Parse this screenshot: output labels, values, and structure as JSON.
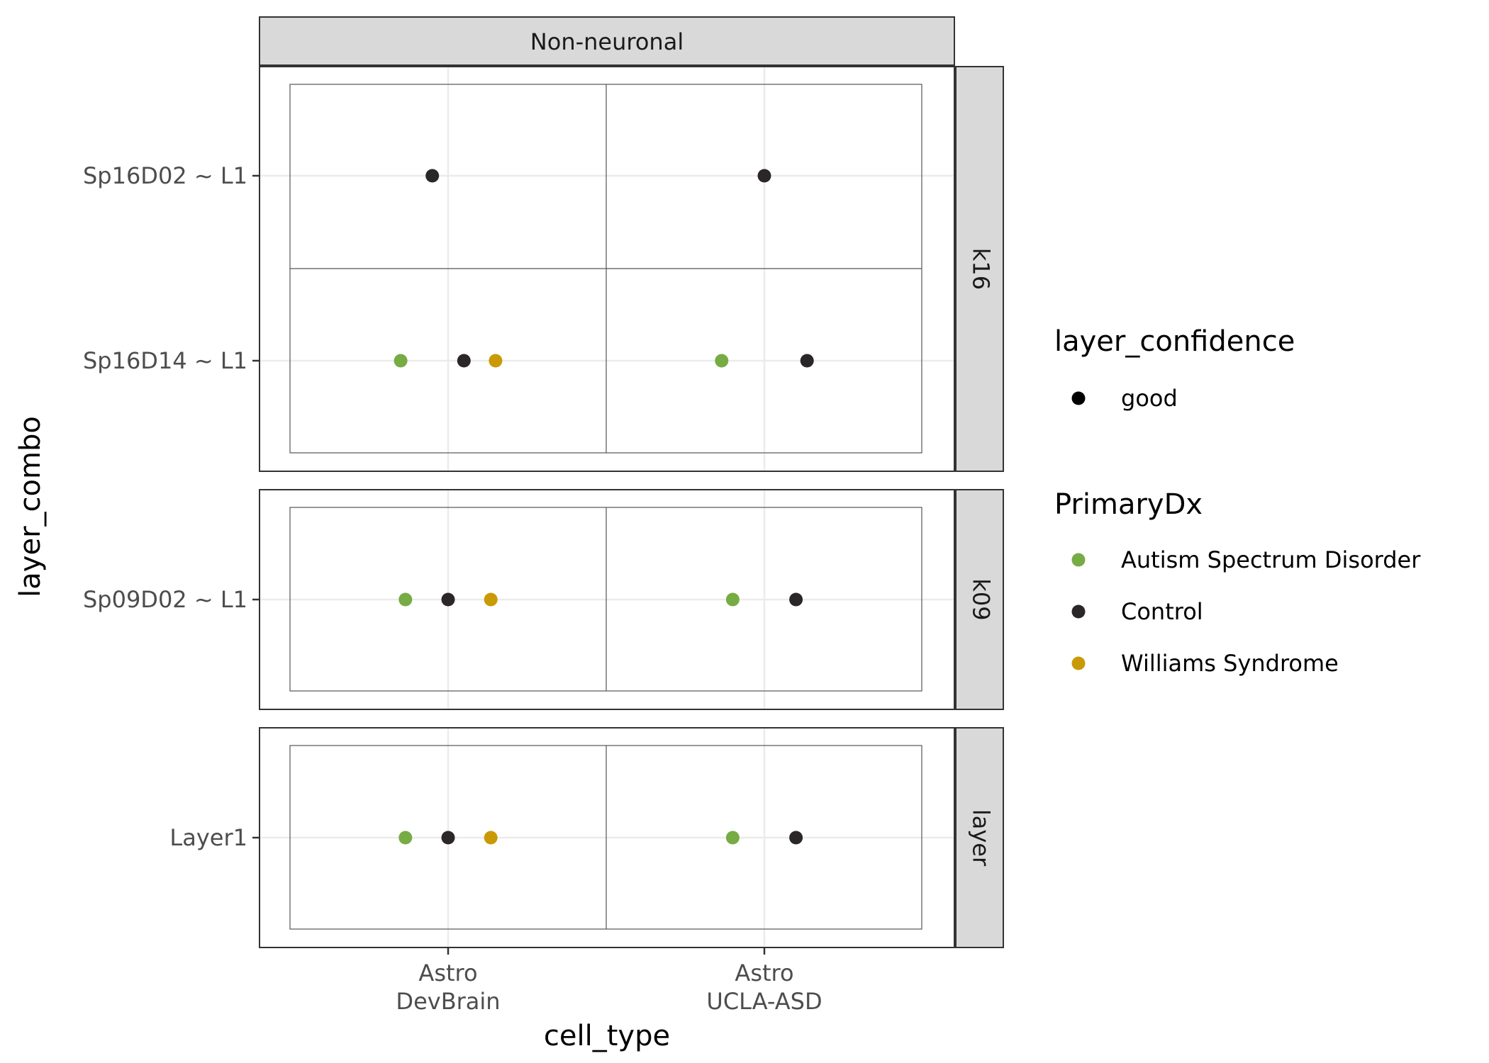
{
  "chart_data": {
    "type": "scatter",
    "x_label": "cell_type",
    "y_label": "layer_combo",
    "column_facet": "Non-neuronal",
    "x_categories": [
      "Astro\nDevBrain",
      "Astro\nUCLA-ASD"
    ],
    "row_facets": [
      {
        "label": "k16",
        "y_categories": [
          "Sp16D02 ~ L1",
          "Sp16D14 ~ L1"
        ],
        "points": [
          {
            "x": "Astro\nDevBrain",
            "y": "Sp16D02 ~ L1",
            "dx": "Control",
            "offset": -0.1
          },
          {
            "x": "Astro\nUCLA-ASD",
            "y": "Sp16D02 ~ L1",
            "dx": "Control",
            "offset": 0.0
          },
          {
            "x": "Astro\nDevBrain",
            "y": "Sp16D14 ~ L1",
            "dx": "Autism Spectrum Disorder",
            "offset": -0.3
          },
          {
            "x": "Astro\nDevBrain",
            "y": "Sp16D14 ~ L1",
            "dx": "Control",
            "offset": 0.1
          },
          {
            "x": "Astro\nDevBrain",
            "y": "Sp16D14 ~ L1",
            "dx": "Williams Syndrome",
            "offset": 0.3
          },
          {
            "x": "Astro\nUCLA-ASD",
            "y": "Sp16D14 ~ L1",
            "dx": "Autism Spectrum Disorder",
            "offset": -0.27
          },
          {
            "x": "Astro\nUCLA-ASD",
            "y": "Sp16D14 ~ L1",
            "dx": "Control",
            "offset": 0.27
          }
        ]
      },
      {
        "label": "k09",
        "y_categories": [
          "Sp09D02 ~ L1"
        ],
        "points": [
          {
            "x": "Astro\nDevBrain",
            "y": "Sp09D02 ~ L1",
            "dx": "Autism Spectrum Disorder",
            "offset": -0.27
          },
          {
            "x": "Astro\nDevBrain",
            "y": "Sp09D02 ~ L1",
            "dx": "Control",
            "offset": 0.0
          },
          {
            "x": "Astro\nDevBrain",
            "y": "Sp09D02 ~ L1",
            "dx": "Williams Syndrome",
            "offset": 0.27
          },
          {
            "x": "Astro\nUCLA-ASD",
            "y": "Sp09D02 ~ L1",
            "dx": "Autism Spectrum Disorder",
            "offset": -0.2
          },
          {
            "x": "Astro\nUCLA-ASD",
            "y": "Sp09D02 ~ L1",
            "dx": "Control",
            "offset": 0.2
          }
        ]
      },
      {
        "label": "layer",
        "y_categories": [
          "Layer1"
        ],
        "points": [
          {
            "x": "Astro\nDevBrain",
            "y": "Layer1",
            "dx": "Autism Spectrum Disorder",
            "offset": -0.27
          },
          {
            "x": "Astro\nDevBrain",
            "y": "Layer1",
            "dx": "Control",
            "offset": 0.0
          },
          {
            "x": "Astro\nDevBrain",
            "y": "Layer1",
            "dx": "Williams Syndrome",
            "offset": 0.27
          },
          {
            "x": "Astro\nUCLA-ASD",
            "y": "Layer1",
            "dx": "Autism Spectrum Disorder",
            "offset": -0.2
          },
          {
            "x": "Astro\nUCLA-ASD",
            "y": "Layer1",
            "dx": "Control",
            "offset": 0.2
          }
        ]
      }
    ],
    "legend": {
      "placement": "right",
      "groups": [
        {
          "title": "layer_confidence",
          "items": [
            {
              "label": "good",
              "color": "#000000"
            }
          ]
        },
        {
          "title": "PrimaryDx",
          "items": [
            {
              "label": "Autism Spectrum Disorder",
              "color": "#77AB43"
            },
            {
              "label": "Control",
              "color": "#2B2728"
            },
            {
              "label": "Williams Syndrome",
              "color": "#C99A06"
            }
          ]
        }
      ]
    },
    "colors": {
      "Autism Spectrum Disorder": "#77AB43",
      "Control": "#2B2728",
      "Williams Syndrome": "#C99A06"
    }
  }
}
